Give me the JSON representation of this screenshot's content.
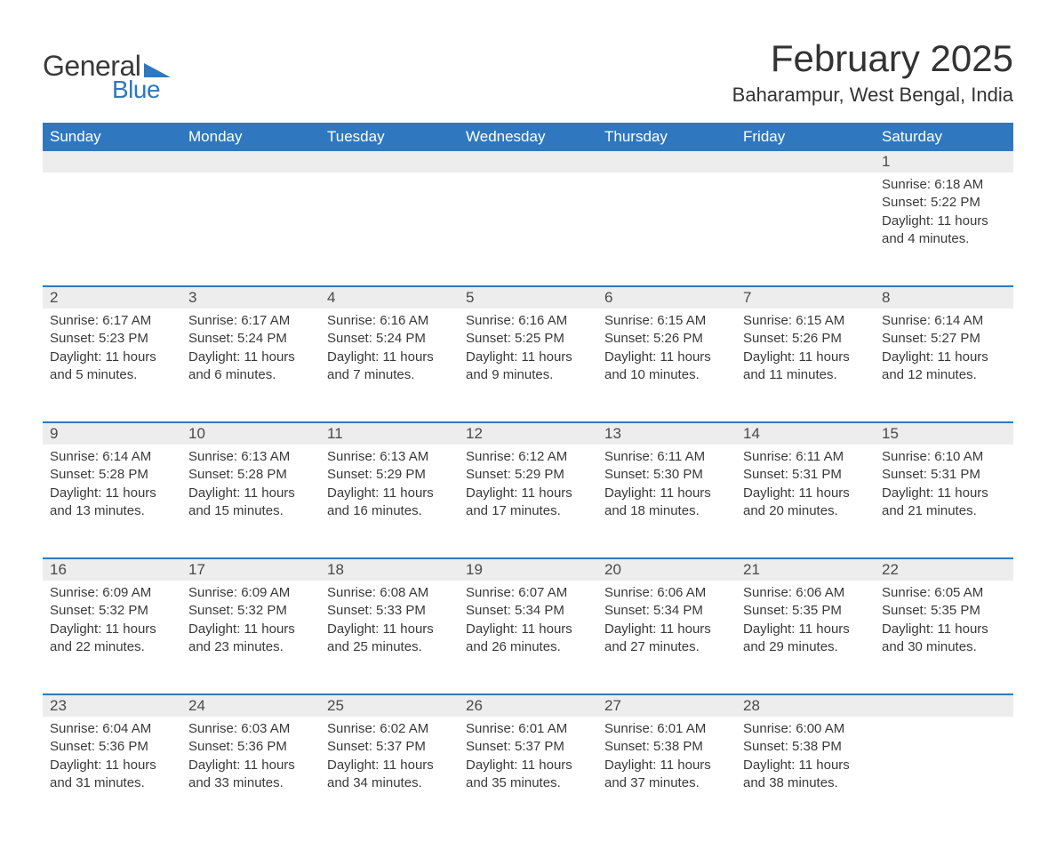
{
  "logo": {
    "general": "General",
    "blue": "Blue",
    "flag_color": "#2f78bf"
  },
  "title": "February 2025",
  "location": "Baharampur, West Bengal, India",
  "colors": {
    "header_bg": "#2f78bf",
    "header_text": "#ffffff",
    "daynum_bg": "#ededed",
    "text": "#333333",
    "separator": "#2f78bf",
    "page_bg": "#ffffff"
  },
  "weekdays": [
    "Sunday",
    "Monday",
    "Tuesday",
    "Wednesday",
    "Thursday",
    "Friday",
    "Saturday"
  ],
  "first_weekday_index": 6,
  "days": [
    {
      "n": 1,
      "sunrise": "6:18 AM",
      "sunset": "5:22 PM",
      "daylight": "11 hours and 4 minutes."
    },
    {
      "n": 2,
      "sunrise": "6:17 AM",
      "sunset": "5:23 PM",
      "daylight": "11 hours and 5 minutes."
    },
    {
      "n": 3,
      "sunrise": "6:17 AM",
      "sunset": "5:24 PM",
      "daylight": "11 hours and 6 minutes."
    },
    {
      "n": 4,
      "sunrise": "6:16 AM",
      "sunset": "5:24 PM",
      "daylight": "11 hours and 7 minutes."
    },
    {
      "n": 5,
      "sunrise": "6:16 AM",
      "sunset": "5:25 PM",
      "daylight": "11 hours and 9 minutes."
    },
    {
      "n": 6,
      "sunrise": "6:15 AM",
      "sunset": "5:26 PM",
      "daylight": "11 hours and 10 minutes."
    },
    {
      "n": 7,
      "sunrise": "6:15 AM",
      "sunset": "5:26 PM",
      "daylight": "11 hours and 11 minutes."
    },
    {
      "n": 8,
      "sunrise": "6:14 AM",
      "sunset": "5:27 PM",
      "daylight": "11 hours and 12 minutes."
    },
    {
      "n": 9,
      "sunrise": "6:14 AM",
      "sunset": "5:28 PM",
      "daylight": "11 hours and 13 minutes."
    },
    {
      "n": 10,
      "sunrise": "6:13 AM",
      "sunset": "5:28 PM",
      "daylight": "11 hours and 15 minutes."
    },
    {
      "n": 11,
      "sunrise": "6:13 AM",
      "sunset": "5:29 PM",
      "daylight": "11 hours and 16 minutes."
    },
    {
      "n": 12,
      "sunrise": "6:12 AM",
      "sunset": "5:29 PM",
      "daylight": "11 hours and 17 minutes."
    },
    {
      "n": 13,
      "sunrise": "6:11 AM",
      "sunset": "5:30 PM",
      "daylight": "11 hours and 18 minutes."
    },
    {
      "n": 14,
      "sunrise": "6:11 AM",
      "sunset": "5:31 PM",
      "daylight": "11 hours and 20 minutes."
    },
    {
      "n": 15,
      "sunrise": "6:10 AM",
      "sunset": "5:31 PM",
      "daylight": "11 hours and 21 minutes."
    },
    {
      "n": 16,
      "sunrise": "6:09 AM",
      "sunset": "5:32 PM",
      "daylight": "11 hours and 22 minutes."
    },
    {
      "n": 17,
      "sunrise": "6:09 AM",
      "sunset": "5:32 PM",
      "daylight": "11 hours and 23 minutes."
    },
    {
      "n": 18,
      "sunrise": "6:08 AM",
      "sunset": "5:33 PM",
      "daylight": "11 hours and 25 minutes."
    },
    {
      "n": 19,
      "sunrise": "6:07 AM",
      "sunset": "5:34 PM",
      "daylight": "11 hours and 26 minutes."
    },
    {
      "n": 20,
      "sunrise": "6:06 AM",
      "sunset": "5:34 PM",
      "daylight": "11 hours and 27 minutes."
    },
    {
      "n": 21,
      "sunrise": "6:06 AM",
      "sunset": "5:35 PM",
      "daylight": "11 hours and 29 minutes."
    },
    {
      "n": 22,
      "sunrise": "6:05 AM",
      "sunset": "5:35 PM",
      "daylight": "11 hours and 30 minutes."
    },
    {
      "n": 23,
      "sunrise": "6:04 AM",
      "sunset": "5:36 PM",
      "daylight": "11 hours and 31 minutes."
    },
    {
      "n": 24,
      "sunrise": "6:03 AM",
      "sunset": "5:36 PM",
      "daylight": "11 hours and 33 minutes."
    },
    {
      "n": 25,
      "sunrise": "6:02 AM",
      "sunset": "5:37 PM",
      "daylight": "11 hours and 34 minutes."
    },
    {
      "n": 26,
      "sunrise": "6:01 AM",
      "sunset": "5:37 PM",
      "daylight": "11 hours and 35 minutes."
    },
    {
      "n": 27,
      "sunrise": "6:01 AM",
      "sunset": "5:38 PM",
      "daylight": "11 hours and 37 minutes."
    },
    {
      "n": 28,
      "sunrise": "6:00 AM",
      "sunset": "5:38 PM",
      "daylight": "11 hours and 38 minutes."
    }
  ],
  "labels": {
    "sunrise": "Sunrise:",
    "sunset": "Sunset:",
    "daylight": "Daylight:"
  }
}
